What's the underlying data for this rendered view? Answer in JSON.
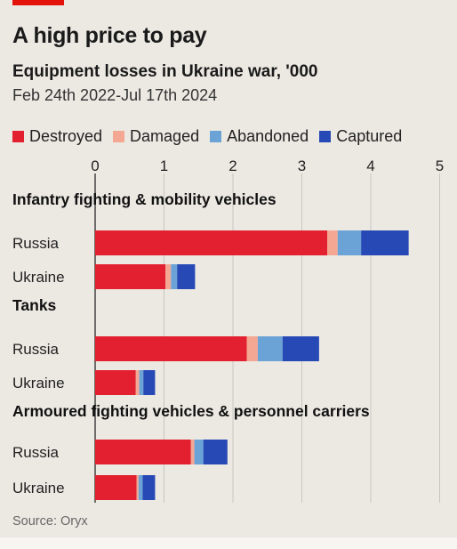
{
  "header": {
    "title": "A high price to pay",
    "subtitle": "Equipment losses in Ukraine war, '000",
    "date_range": "Feb 24th 2022-Jul 17th 2024",
    "source": "Source: Oryx"
  },
  "legend": [
    {
      "label": "Destroyed",
      "color": "#e3202f"
    },
    {
      "label": "Damaged",
      "color": "#f4a793"
    },
    {
      "label": "Abandoned",
      "color": "#6ba3d6"
    },
    {
      "label": "Captured",
      "color": "#2749b5"
    }
  ],
  "chart_data": {
    "type": "bar",
    "orientation": "horizontal",
    "stacked": true,
    "xlim": [
      0,
      5
    ],
    "x_ticks": [
      "0",
      "1",
      "2",
      "3",
      "4",
      "5"
    ],
    "series_names": [
      "Destroyed",
      "Damaged",
      "Abandoned",
      "Captured"
    ],
    "groups": [
      {
        "label": "Infantry fighting & mobility vehicles",
        "rows": [
          {
            "label": "Russia",
            "values": [
              3.37,
              0.15,
              0.34,
              0.69
            ]
          },
          {
            "label": "Ukraine",
            "values": [
              1.02,
              0.08,
              0.09,
              0.26
            ]
          }
        ]
      },
      {
        "label": "Tanks",
        "rows": [
          {
            "label": "Russia",
            "values": [
              2.2,
              0.16,
              0.36,
              0.53
            ]
          },
          {
            "label": "Ukraine",
            "values": [
              0.59,
              0.05,
              0.06,
              0.17
            ]
          }
        ]
      },
      {
        "label": "Armoured fighting vehicles & personnel carriers",
        "rows": [
          {
            "label": "Russia",
            "values": [
              1.39,
              0.05,
              0.13,
              0.35
            ]
          },
          {
            "label": "Ukraine",
            "values": [
              0.6,
              0.03,
              0.06,
              0.18
            ]
          }
        ]
      }
    ]
  }
}
